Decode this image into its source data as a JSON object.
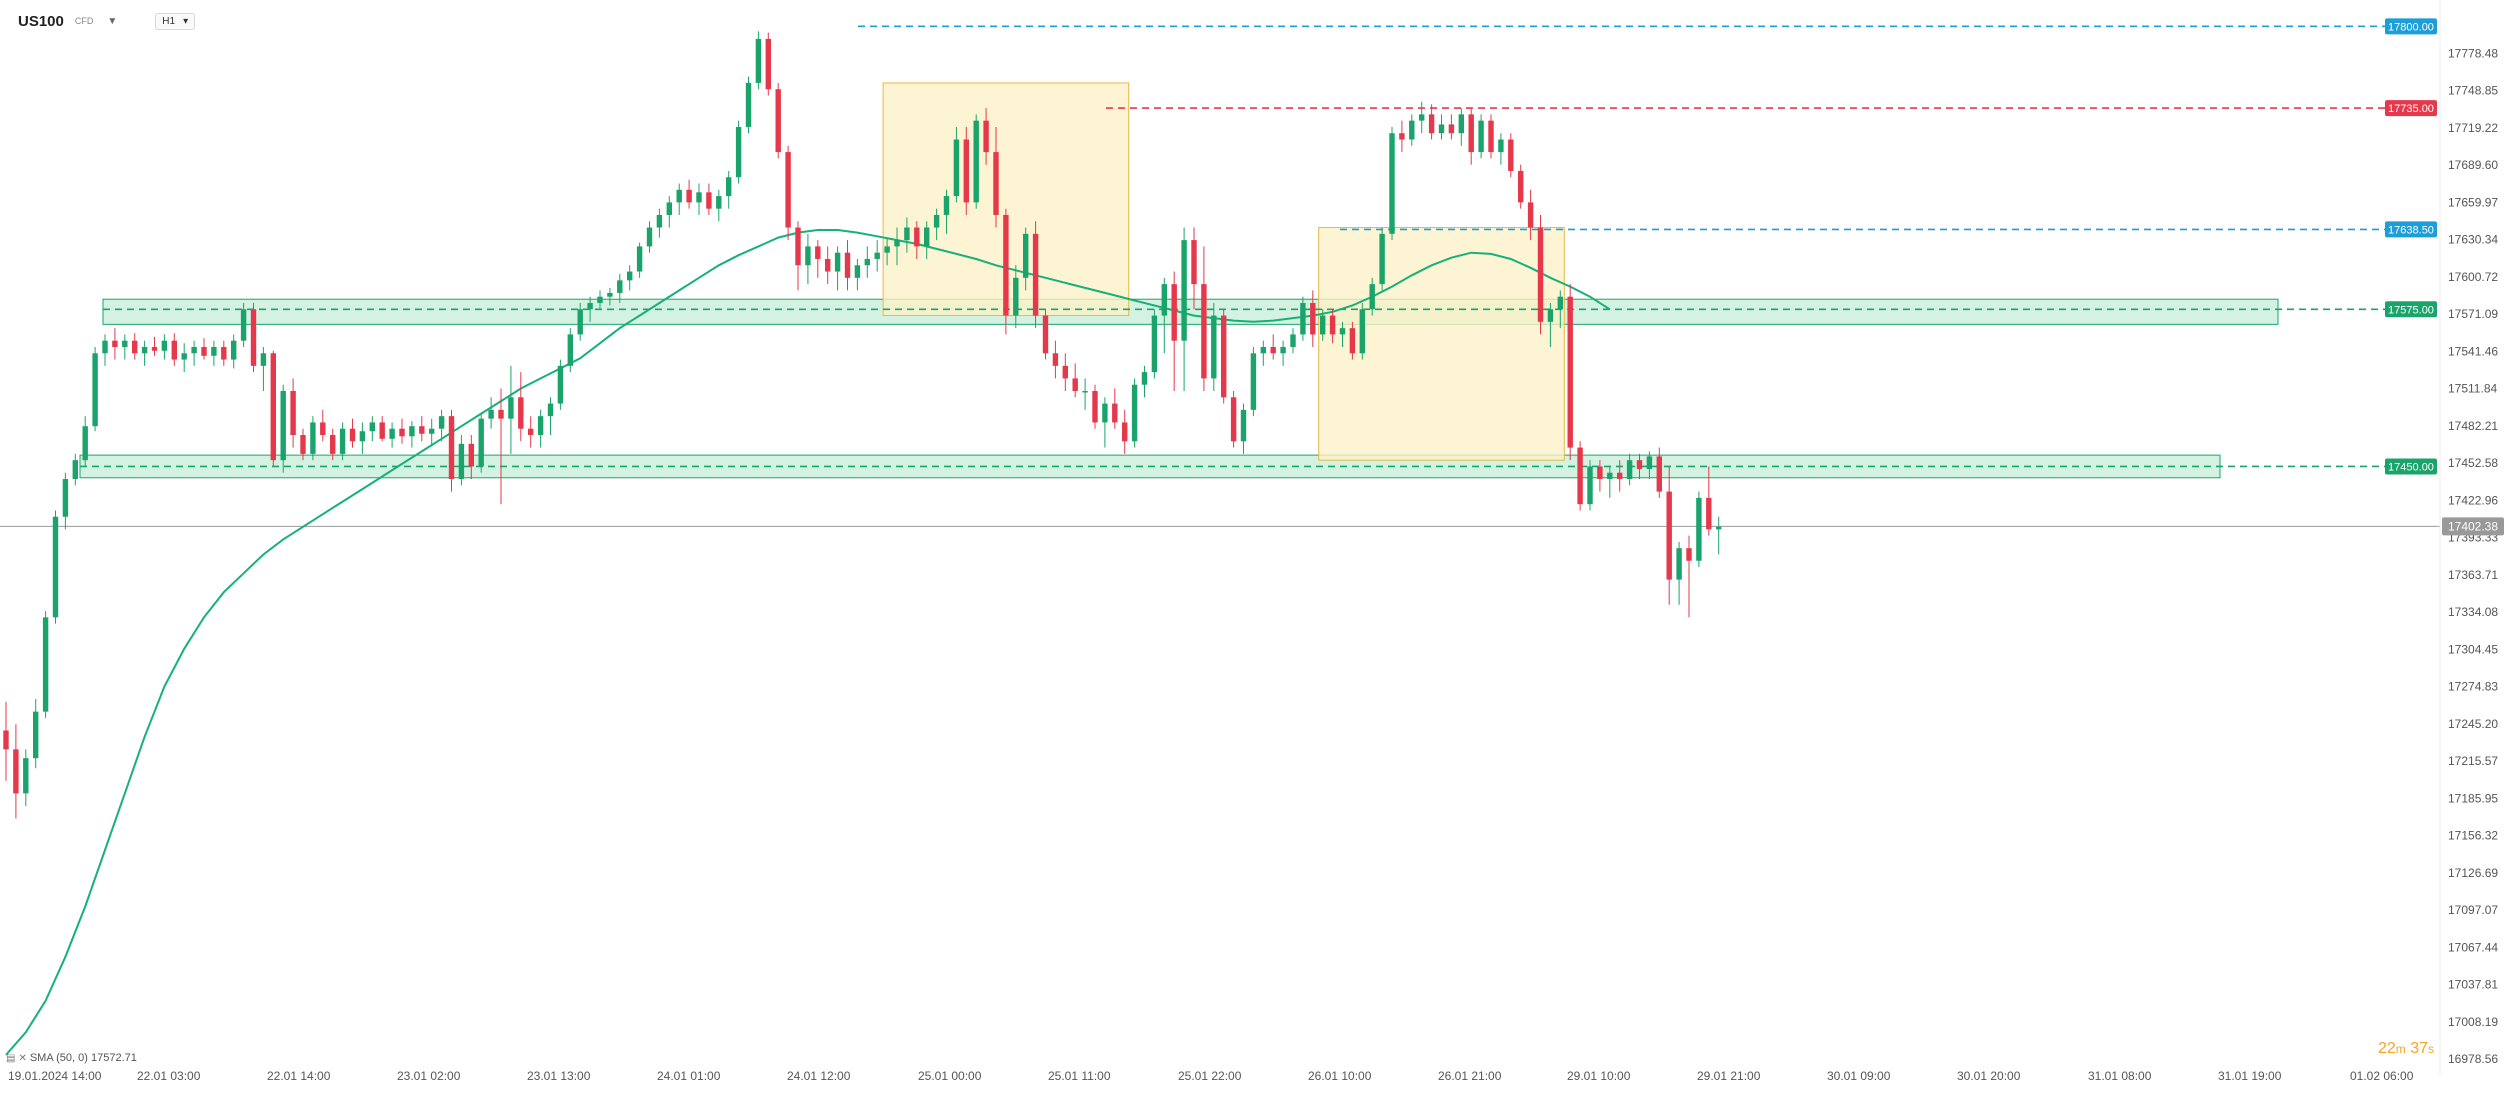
{
  "header": {
    "symbol": "US100",
    "symbol_type": "CFD",
    "timeframe": "H1"
  },
  "indicator": {
    "label": "SMA (50, 0) 17572.71"
  },
  "countdown": {
    "minutes": "22",
    "m": "m",
    "seconds": "37",
    "s": "s"
  },
  "colors": {
    "up": "#1aa46b",
    "down": "#e5384b",
    "sma": "#16b07a",
    "zone_fill": "#c9efdb",
    "zone_border": "#1aa46b",
    "box_fill": "#fbf1c8",
    "box_border": "#e8b84a",
    "blue_level": "#1e9ed9",
    "red_level": "#e5384b",
    "green_level": "#1aa46b",
    "current": "#999999"
  },
  "chart_data": {
    "type": "candlestick",
    "symbol": "US100",
    "timeframe": "H1",
    "ylim": [
      16970,
      17813
    ],
    "y_ticks": [
      "17778.48",
      "17748.85",
      "17719.22",
      "17689.60",
      "17659.97",
      "17630.34",
      "17600.72",
      "17571.09",
      "17541.46",
      "17511.84",
      "17482.21",
      "17452.58",
      "17422.96",
      "17393.33",
      "17363.71",
      "17334.08",
      "17304.45",
      "17274.83",
      "17245.20",
      "17215.57",
      "17185.95",
      "17156.32",
      "17126.69",
      "17097.07",
      "17067.44",
      "17037.81",
      "17008.19",
      "16978.56"
    ],
    "x_labels": [
      "19.01.2024 14:00",
      "22.01 03:00",
      "22.01 14:00",
      "23.01 02:00",
      "23.01 13:00",
      "24.01 01:00",
      "24.01 12:00",
      "25.01 00:00",
      "25.01 11:00",
      "25.01 22:00",
      "26.01 10:00",
      "26.01 21:00",
      "29.01 10:00",
      "29.01 21:00",
      "30.01 09:00",
      "30.01 20:00",
      "31.01 08:00",
      "31.01 19:00",
      "01.02 06:00"
    ],
    "price_levels": [
      {
        "value": 17800.0,
        "label": "17800.00",
        "color": "blue"
      },
      {
        "value": 17735.0,
        "label": "17735.00",
        "color": "red"
      },
      {
        "value": 17638.5,
        "label": "17638.50",
        "color": "blue"
      },
      {
        "value": 17575.0,
        "label": "17575.00",
        "color": "green"
      },
      {
        "value": 17450.0,
        "label": "17450.00",
        "color": "green"
      }
    ],
    "current_price": {
      "value": 17402.38,
      "label": "17402.38"
    },
    "support_resistance_zones": [
      {
        "top": 17583,
        "bottom": 17563
      },
      {
        "top": 17459,
        "bottom": 17441
      }
    ],
    "consolidation_boxes": [
      {
        "start_index": 89,
        "end_index": 113,
        "top": 17755,
        "bottom": 17570
      },
      {
        "start_index": 133,
        "end_index": 157,
        "top": 17640,
        "bottom": 17455
      }
    ],
    "sma": {
      "period": 50,
      "value": 17572.71,
      "start_index": 0,
      "values": [
        16982,
        17000,
        17025,
        17060,
        17100,
        17145,
        17190,
        17235,
        17275,
        17305,
        17330,
        17350,
        17365,
        17380,
        17392,
        17402,
        17412,
        17422,
        17432,
        17442,
        17452,
        17462,
        17472,
        17482,
        17492,
        17502,
        17512,
        17520,
        17528,
        17536,
        17548,
        17560,
        17570,
        17580,
        17590,
        17600,
        17610,
        17618,
        17625,
        17632,
        17636,
        17638,
        17638,
        17636,
        17633,
        17630,
        17627,
        17623,
        17619,
        17615,
        17610,
        17606,
        17602,
        17598,
        17594,
        17590,
        17586,
        17582,
        17578,
        17574,
        17570,
        17568,
        17566,
        17565,
        17566,
        17568,
        17570,
        17573,
        17578,
        17585,
        17593,
        17602,
        17610,
        17616,
        17620,
        17619,
        17615,
        17608,
        17600,
        17593,
        17585,
        17575
      ]
    },
    "candles": [
      [
        17240,
        17263,
        17200,
        17225
      ],
      [
        17225,
        17245,
        17170,
        17190
      ],
      [
        17190,
        17225,
        17180,
        17218
      ],
      [
        17218,
        17265,
        17210,
        17255
      ],
      [
        17255,
        17335,
        17250,
        17330
      ],
      [
        17330,
        17415,
        17325,
        17410
      ],
      [
        17410,
        17445,
        17400,
        17440
      ],
      [
        17440,
        17460,
        17435,
        17455
      ],
      [
        17455,
        17490,
        17450,
        17482
      ],
      [
        17482,
        17545,
        17478,
        17540
      ],
      [
        17540,
        17555,
        17530,
        17550
      ],
      [
        17550,
        17560,
        17535,
        17545
      ],
      [
        17545,
        17555,
        17535,
        17550
      ],
      [
        17550,
        17556,
        17535,
        17540
      ],
      [
        17540,
        17550,
        17530,
        17545
      ],
      [
        17545,
        17553,
        17538,
        17542
      ],
      [
        17542,
        17555,
        17535,
        17550
      ],
      [
        17550,
        17556,
        17530,
        17535
      ],
      [
        17535,
        17548,
        17525,
        17540
      ],
      [
        17540,
        17550,
        17530,
        17545
      ],
      [
        17545,
        17552,
        17535,
        17538
      ],
      [
        17538,
        17550,
        17530,
        17545
      ],
      [
        17545,
        17550,
        17530,
        17535
      ],
      [
        17535,
        17555,
        17528,
        17550
      ],
      [
        17550,
        17580,
        17545,
        17575
      ],
      [
        17575,
        17580,
        17525,
        17530
      ],
      [
        17530,
        17545,
        17510,
        17540
      ],
      [
        17540,
        17542,
        17450,
        17455
      ],
      [
        17455,
        17515,
        17445,
        17510
      ],
      [
        17510,
        17520,
        17465,
        17475
      ],
      [
        17475,
        17480,
        17455,
        17460
      ],
      [
        17460,
        17490,
        17455,
        17485
      ],
      [
        17485,
        17495,
        17470,
        17475
      ],
      [
        17475,
        17480,
        17455,
        17460
      ],
      [
        17460,
        17485,
        17455,
        17480
      ],
      [
        17480,
        17488,
        17465,
        17470
      ],
      [
        17470,
        17485,
        17460,
        17478
      ],
      [
        17478,
        17490,
        17470,
        17485
      ],
      [
        17485,
        17490,
        17470,
        17472
      ],
      [
        17472,
        17485,
        17465,
        17480
      ],
      [
        17480,
        17488,
        17468,
        17474
      ],
      [
        17474,
        17486,
        17465,
        17482
      ],
      [
        17482,
        17490,
        17470,
        17476
      ],
      [
        17476,
        17488,
        17466,
        17480
      ],
      [
        17480,
        17495,
        17470,
        17490
      ],
      [
        17490,
        17495,
        17430,
        17440
      ],
      [
        17440,
        17475,
        17435,
        17468
      ],
      [
        17468,
        17475,
        17440,
        17450
      ],
      [
        17450,
        17492,
        17445,
        17488
      ],
      [
        17488,
        17505,
        17480,
        17495
      ],
      [
        17495,
        17512,
        17420,
        17488
      ],
      [
        17488,
        17530,
        17460,
        17505
      ],
      [
        17505,
        17525,
        17470,
        17480
      ],
      [
        17480,
        17490,
        17465,
        17475
      ],
      [
        17475,
        17495,
        17465,
        17490
      ],
      [
        17490,
        17505,
        17475,
        17500
      ],
      [
        17500,
        17535,
        17495,
        17530
      ],
      [
        17530,
        17560,
        17525,
        17555
      ],
      [
        17555,
        17580,
        17550,
        17575
      ],
      [
        17575,
        17585,
        17565,
        17580
      ],
      [
        17580,
        17590,
        17575,
        17585
      ],
      [
        17585,
        17592,
        17578,
        17588
      ],
      [
        17588,
        17603,
        17580,
        17598
      ],
      [
        17598,
        17610,
        17590,
        17605
      ],
      [
        17605,
        17628,
        17600,
        17625
      ],
      [
        17625,
        17645,
        17620,
        17640
      ],
      [
        17640,
        17655,
        17632,
        17650
      ],
      [
        17650,
        17665,
        17640,
        17660
      ],
      [
        17660,
        17675,
        17650,
        17670
      ],
      [
        17670,
        17678,
        17655,
        17660
      ],
      [
        17660,
        17675,
        17650,
        17668
      ],
      [
        17668,
        17675,
        17650,
        17655
      ],
      [
        17655,
        17670,
        17645,
        17665
      ],
      [
        17665,
        17685,
        17655,
        17680
      ],
      [
        17680,
        17725,
        17675,
        17720
      ],
      [
        17720,
        17760,
        17715,
        17755
      ],
      [
        17755,
        17796,
        17750,
        17790
      ],
      [
        17790,
        17795,
        17745,
        17750
      ],
      [
        17750,
        17755,
        17695,
        17700
      ],
      [
        17700,
        17705,
        17630,
        17640
      ],
      [
        17640,
        17645,
        17590,
        17610
      ],
      [
        17610,
        17635,
        17595,
        17625
      ],
      [
        17625,
        17630,
        17600,
        17615
      ],
      [
        17615,
        17625,
        17595,
        17605
      ],
      [
        17605,
        17625,
        17590,
        17620
      ],
      [
        17620,
        17630,
        17590,
        17600
      ],
      [
        17600,
        17615,
        17590,
        17610
      ],
      [
        17610,
        17625,
        17600,
        17615
      ],
      [
        17615,
        17630,
        17605,
        17620
      ],
      [
        17620,
        17632,
        17610,
        17625
      ],
      [
        17625,
        17640,
        17610,
        17630
      ],
      [
        17630,
        17648,
        17620,
        17640
      ],
      [
        17640,
        17645,
        17615,
        17625
      ],
      [
        17625,
        17645,
        17615,
        17640
      ],
      [
        17640,
        17655,
        17630,
        17650
      ],
      [
        17650,
        17670,
        17635,
        17665
      ],
      [
        17665,
        17720,
        17660,
        17710
      ],
      [
        17710,
        17720,
        17650,
        17660
      ],
      [
        17660,
        17730,
        17655,
        17725
      ],
      [
        17725,
        17735,
        17690,
        17700
      ],
      [
        17700,
        17720,
        17640,
        17650
      ],
      [
        17650,
        17655,
        17555,
        17570
      ],
      [
        17570,
        17610,
        17560,
        17600
      ],
      [
        17600,
        17640,
        17590,
        17635
      ],
      [
        17635,
        17645,
        17560,
        17570
      ],
      [
        17570,
        17575,
        17535,
        17540
      ],
      [
        17540,
        17550,
        17520,
        17530
      ],
      [
        17530,
        17540,
        17510,
        17520
      ],
      [
        17520,
        17532,
        17505,
        17510
      ],
      [
        17510,
        17520,
        17495,
        17510
      ],
      [
        17510,
        17515,
        17480,
        17485
      ],
      [
        17485,
        17505,
        17465,
        17500
      ],
      [
        17500,
        17512,
        17480,
        17485
      ],
      [
        17485,
        17495,
        17460,
        17470
      ],
      [
        17470,
        17520,
        17465,
        17515
      ],
      [
        17515,
        17530,
        17505,
        17525
      ],
      [
        17525,
        17575,
        17520,
        17570
      ],
      [
        17570,
        17600,
        17540,
        17595
      ],
      [
        17595,
        17605,
        17510,
        17550
      ],
      [
        17550,
        17640,
        17510,
        17630
      ],
      [
        17630,
        17640,
        17575,
        17595
      ],
      [
        17595,
        17625,
        17510,
        17520
      ],
      [
        17520,
        17580,
        17510,
        17570
      ],
      [
        17570,
        17575,
        17500,
        17505
      ],
      [
        17505,
        17510,
        17465,
        17470
      ],
      [
        17470,
        17500,
        17460,
        17495
      ],
      [
        17495,
        17545,
        17490,
        17540
      ],
      [
        17540,
        17550,
        17530,
        17545
      ],
      [
        17545,
        17555,
        17535,
        17540
      ],
      [
        17540,
        17550,
        17530,
        17545
      ],
      [
        17545,
        17560,
        17540,
        17555
      ],
      [
        17555,
        17585,
        17550,
        17580
      ],
      [
        17580,
        17590,
        17545,
        17555
      ],
      [
        17555,
        17575,
        17550,
        17570
      ],
      [
        17570,
        17575,
        17548,
        17555
      ],
      [
        17555,
        17565,
        17545,
        17560
      ],
      [
        17560,
        17565,
        17535,
        17540
      ],
      [
        17540,
        17580,
        17535,
        17575
      ],
      [
        17575,
        17600,
        17570,
        17595
      ],
      [
        17595,
        17640,
        17590,
        17635
      ],
      [
        17635,
        17720,
        17630,
        17715
      ],
      [
        17715,
        17725,
        17700,
        17710
      ],
      [
        17710,
        17730,
        17705,
        17725
      ],
      [
        17725,
        17740,
        17715,
        17730
      ],
      [
        17730,
        17738,
        17710,
        17715
      ],
      [
        17715,
        17730,
        17710,
        17722
      ],
      [
        17722,
        17730,
        17710,
        17715
      ],
      [
        17715,
        17735,
        17705,
        17730
      ],
      [
        17730,
        17735,
        17690,
        17700
      ],
      [
        17700,
        17730,
        17695,
        17725
      ],
      [
        17725,
        17730,
        17695,
        17700
      ],
      [
        17700,
        17715,
        17690,
        17710
      ],
      [
        17710,
        17715,
        17680,
        17685
      ],
      [
        17685,
        17690,
        17655,
        17660
      ],
      [
        17660,
        17670,
        17630,
        17640
      ],
      [
        17640,
        17650,
        17555,
        17565
      ],
      [
        17565,
        17580,
        17545,
        17575
      ],
      [
        17575,
        17590,
        17560,
        17585
      ],
      [
        17585,
        17595,
        17455,
        17465
      ],
      [
        17465,
        17470,
        17415,
        17420
      ],
      [
        17420,
        17455,
        17415,
        17450
      ],
      [
        17450,
        17455,
        17430,
        17440
      ],
      [
        17440,
        17450,
        17425,
        17445
      ],
      [
        17445,
        17455,
        17430,
        17440
      ],
      [
        17440,
        17460,
        17435,
        17455
      ],
      [
        17455,
        17460,
        17440,
        17448
      ],
      [
        17448,
        17462,
        17440,
        17458
      ],
      [
        17458,
        17465,
        17425,
        17430
      ],
      [
        17430,
        17450,
        17340,
        17360
      ],
      [
        17360,
        17390,
        17340,
        17385
      ],
      [
        17385,
        17395,
        17330,
        17375
      ],
      [
        17375,
        17430,
        17370,
        17425
      ],
      [
        17425,
        17450,
        17395,
        17400
      ],
      [
        17400,
        17410,
        17380,
        17402
      ]
    ]
  }
}
